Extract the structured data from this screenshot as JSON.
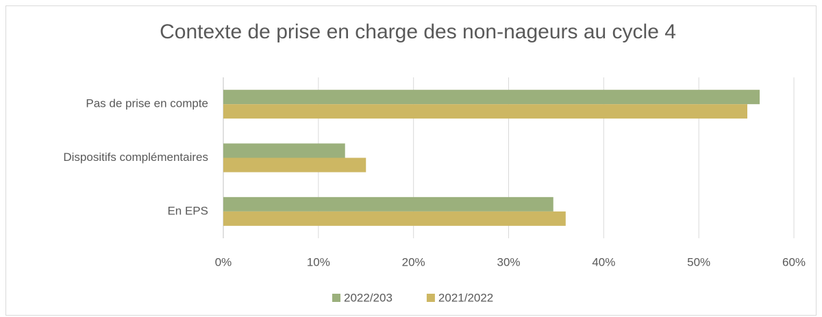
{
  "chart_data": {
    "type": "hbar",
    "title": "Contexte de prise en charge des non-nageurs au cycle 4",
    "categories": [
      "Pas de prise en compte",
      "Dispositifs complémentaires",
      "En EPS"
    ],
    "series": [
      {
        "name": "2022/203",
        "color": "#9bb07c",
        "values": [
          56.4,
          12.8,
          34.7
        ]
      },
      {
        "name": "2021/2022",
        "color": "#cdb763",
        "values": [
          55.1,
          15.0,
          36.0
        ]
      }
    ],
    "xlim": [
      0,
      60
    ],
    "xticks": [
      {
        "value": 0,
        "label": "0%"
      },
      {
        "value": 10,
        "label": "10%"
      },
      {
        "value": 20,
        "label": "20%"
      },
      {
        "value": 30,
        "label": "30%"
      },
      {
        "value": 40,
        "label": "40%"
      },
      {
        "value": 50,
        "label": "50%"
      },
      {
        "value": 60,
        "label": "60%"
      }
    ],
    "grid": true,
    "legend": "bottom"
  }
}
